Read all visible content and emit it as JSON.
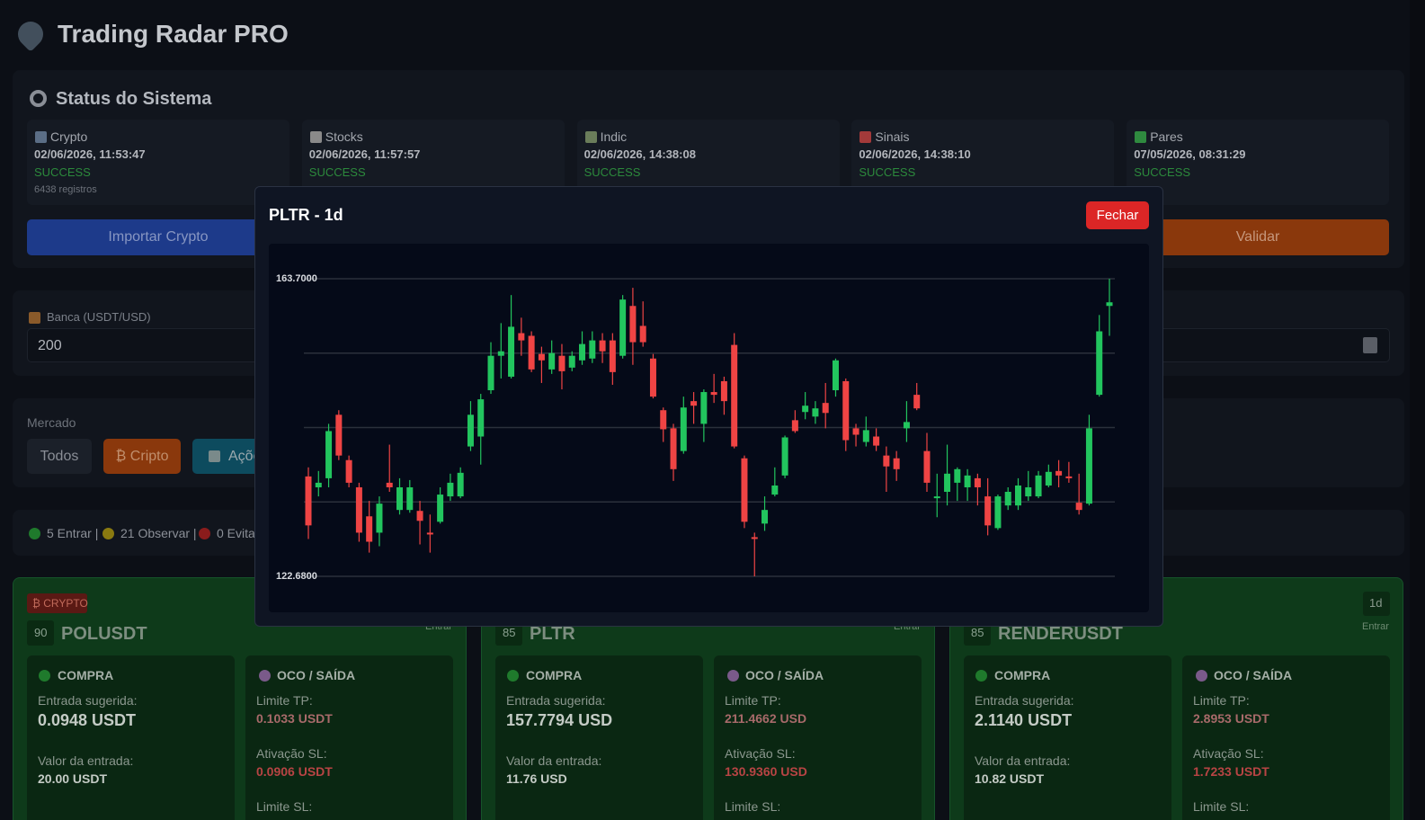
{
  "header": {
    "title": "Trading Radar PRO"
  },
  "status": {
    "title": "Status do Sistema",
    "cards": [
      {
        "name": "Crypto",
        "time": "02/06/2026, 11:53:47",
        "status": "SUCCESS",
        "records": "6438 registros"
      },
      {
        "name": "Stocks",
        "time": "02/06/2026, 11:57:57",
        "status": "SUCCESS"
      },
      {
        "name": "Indic",
        "time": "02/06/2026, 14:38:08",
        "status": "SUCCESS"
      },
      {
        "name": "Sinais",
        "time": "02/06/2026, 14:38:10",
        "status": "SUCCESS"
      },
      {
        "name": "Pares",
        "time": "07/05/2026, 08:31:29",
        "status": "SUCCESS"
      }
    ],
    "buttons": [
      "Importar Crypto",
      "Validar"
    ]
  },
  "bank": {
    "label": "Banca (USDT/USD)",
    "value": "200"
  },
  "market": {
    "label": "Mercado",
    "filters": [
      "Todos",
      "₿ Cripto",
      "Ações"
    ]
  },
  "summary": {
    "enter": "5 Entrar |",
    "observe": "21 Observar |",
    "avoid": "0 Evitar"
  },
  "signals": [
    {
      "badge": "₿ CRYPTO",
      "score": 90,
      "symbol": "POLUSDT",
      "action": "Entrar",
      "buy": {
        "title": "COMPRA",
        "entry_label": "Entrada sugerida:",
        "entry": "0.0948 USDT",
        "value_label": "Valor da entrada:",
        "value": "20.00 USDT"
      },
      "exit": {
        "title": "OCO / SAÍDA",
        "tp_label": "Limite TP:",
        "tp": "0.1033 USDT",
        "sl_label": "Ativação SL:",
        "sl": "0.0906 USDT",
        "sl_limit_label": "Limite SL:"
      }
    },
    {
      "score": 85,
      "symbol": "PLTR",
      "action": "Entrar",
      "buy": {
        "title": "COMPRA",
        "entry_label": "Entrada sugerida:",
        "entry": "157.7794 USD",
        "value_label": "Valor da entrada:",
        "value": "11.76 USD"
      },
      "exit": {
        "title": "OCO / SAÍDA",
        "tp_label": "Limite TP:",
        "tp": "211.4662 USD",
        "sl_label": "Ativação SL:",
        "sl": "130.9360 USD",
        "sl_limit_label": "Limite SL:"
      }
    },
    {
      "timeframe": "1d",
      "score": 85,
      "symbol": "RENDERUSDT",
      "action": "Entrar",
      "buy": {
        "title": "COMPRA",
        "entry_label": "Entrada sugerida:",
        "entry": "2.1140 USDT",
        "value_label": "Valor da entrada:",
        "value": "10.82 USDT"
      },
      "exit": {
        "title": "OCO / SAÍDA",
        "tp_label": "Limite TP:",
        "tp": "2.8953 USDT",
        "sl_label": "Ativação SL:",
        "sl": "1.7233 USDT",
        "sl_limit_label": "Limite SL:"
      }
    }
  ],
  "modal": {
    "title": "PLTR - 1d",
    "close": "Fechar"
  },
  "chart_data": {
    "type": "candlestick",
    "up_color": "#22c55e",
    "down_color": "#ef4444",
    "grid": true,
    "ylim": [
      122.68,
      163.7
    ],
    "yticks": [
      {
        "value": 122.68,
        "label": "122.6800"
      },
      {
        "value": 132.935,
        "label": null
      },
      {
        "value": 143.19,
        "label": null
      },
      {
        "value": 153.445,
        "label": null
      },
      {
        "value": 163.7,
        "label": "163.7000"
      }
    ],
    "open": [
      136.45,
      134.95,
      136.2,
      144.95,
      138.7,
      134.95,
      130.95,
      128.7,
      135.58,
      131.83,
      131.83,
      131.7,
      128.7,
      130.2,
      133.7,
      133.7,
      140.58,
      141.95,
      148.33,
      153.08,
      150.2,
      156.2,
      155.83,
      153.33,
      151.2,
      153.08,
      151.45,
      152.45,
      152.7,
      155.2,
      155.2,
      153.08,
      159.95,
      157.2,
      152.7,
      145.58,
      143.08,
      139.95,
      146.83,
      143.7,
      148.08,
      149.58,
      154.58,
      138.95,
      128.08,
      129.95,
      133.95,
      136.58,
      144.2,
      145.33,
      144.7,
      146.58,
      148.33,
      149.58,
      143.08,
      141.2,
      141.95,
      139.33,
      138.95,
      143.08,
      147.7,
      139.95,
      133.45,
      134.33,
      135.58,
      134.95,
      136.2,
      133.7,
      129.33,
      132.45,
      132.45,
      133.7,
      133.7,
      135.2,
      137.2,
      136.45,
      132.83,
      132.7,
      147.7,
      159.95
    ],
    "high": [
      137.7,
      137.2,
      143.7,
      145.58,
      139.33,
      135.58,
      133.08,
      133.7,
      140.83,
      136.2,
      135.95,
      133.08,
      131.2,
      134.95,
      136.83,
      137.7,
      146.83,
      147.83,
      154.95,
      157.58,
      161.45,
      158.33,
      156.45,
      154.33,
      155.2,
      154.7,
      153.7,
      156.45,
      156.45,
      156.2,
      156.2,
      161.45,
      162.45,
      160.58,
      153.33,
      145.95,
      143.7,
      147.45,
      148.08,
      148.45,
      150.58,
      150.2,
      156.2,
      139.33,
      128.7,
      133.7,
      137.7,
      142.08,
      145.58,
      148.08,
      146.83,
      149.33,
      152.7,
      149.95,
      143.7,
      144.7,
      143.08,
      140.58,
      139.95,
      146.83,
      149.33,
      142.45,
      136.83,
      140.83,
      137.7,
      137.45,
      136.83,
      136.2,
      133.95,
      134.95,
      136.2,
      137.2,
      137.2,
      138.08,
      138.7,
      138.45,
      136.83,
      144.95,
      158.7,
      163.7
    ],
    "low": [
      127.83,
      133.7,
      134.95,
      138.7,
      134.95,
      127.45,
      125.95,
      126.83,
      134.33,
      131.2,
      131.45,
      127.08,
      125.95,
      129.95,
      133.08,
      133.45,
      139.95,
      138.08,
      147.83,
      149.95,
      149.95,
      153.08,
      150.83,
      149.33,
      150.58,
      148.45,
      150.95,
      151.83,
      152.08,
      152.08,
      149.08,
      152.7,
      151.83,
      154.33,
      147.2,
      141.2,
      135.83,
      139.58,
      143.7,
      141.2,
      146.58,
      144.95,
      140.33,
      129.33,
      122.68,
      128.95,
      133.7,
      136.2,
      142.45,
      144.33,
      143.7,
      143.08,
      147.45,
      139.95,
      140.58,
      140.58,
      139.95,
      134.33,
      135.83,
      141.2,
      145.58,
      134.33,
      130.83,
      132.45,
      133.08,
      133.08,
      132.45,
      128.33,
      129.08,
      131.83,
      131.83,
      133.08,
      133.45,
      134.95,
      134.95,
      135.58,
      131.2,
      132.45,
      147.45,
      155.83
    ],
    "close": [
      129.7,
      135.58,
      142.7,
      139.33,
      135.58,
      128.7,
      127.45,
      132.7,
      134.95,
      134.95,
      134.95,
      130.33,
      128.45,
      133.95,
      135.58,
      136.95,
      144.95,
      147.08,
      153.08,
      153.7,
      157.08,
      155.2,
      151.2,
      152.45,
      153.45,
      150.95,
      153.08,
      154.7,
      155.2,
      153.7,
      150.83,
      160.83,
      154.95,
      154.95,
      147.45,
      142.95,
      137.45,
      145.95,
      146.2,
      148.08,
      147.7,
      146.83,
      140.58,
      130.2,
      127.83,
      131.83,
      135.2,
      141.83,
      142.7,
      146.2,
      145.83,
      145.2,
      152.45,
      141.45,
      142.2,
      142.83,
      140.7,
      137.83,
      137.45,
      143.95,
      145.83,
      135.58,
      133.7,
      136.83,
      137.45,
      136.58,
      134.95,
      129.7,
      133.7,
      134.33,
      135.2,
      134.95,
      136.58,
      137.08,
      136.58,
      136.2,
      131.83,
      143.08,
      156.45,
      160.45
    ]
  }
}
